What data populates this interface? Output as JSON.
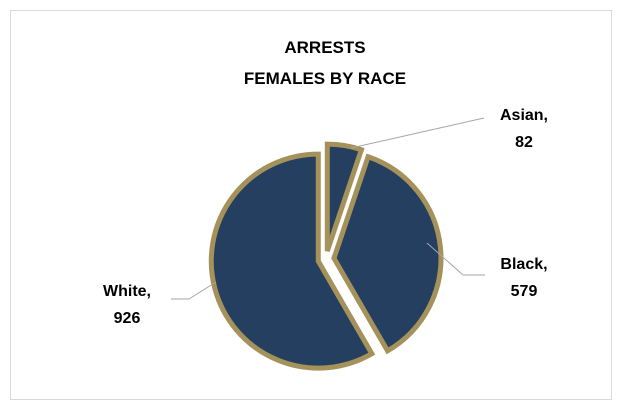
{
  "colors": {
    "slice_fill": "#243f60",
    "slice_stroke": "#a5925a",
    "leader_line": "#a6a6a6",
    "border": "#d9d9d9",
    "text": "#000000"
  },
  "chart_data": {
    "type": "pie",
    "title": "ARRESTS FEMALES BY RACE",
    "title_lines": [
      "ARRESTS",
      "FEMALES BY RACE"
    ],
    "categories": [
      "Asian",
      "Black",
      "White"
    ],
    "values": [
      82,
      579,
      926
    ],
    "exploded": true,
    "legend": "none",
    "data_labels": [
      {
        "category": "Asian",
        "lines": [
          "Asian,",
          "82"
        ]
      },
      {
        "category": "Black",
        "lines": [
          "Black,",
          "579"
        ]
      },
      {
        "category": "White",
        "lines": [
          "White,",
          "926"
        ]
      }
    ]
  }
}
